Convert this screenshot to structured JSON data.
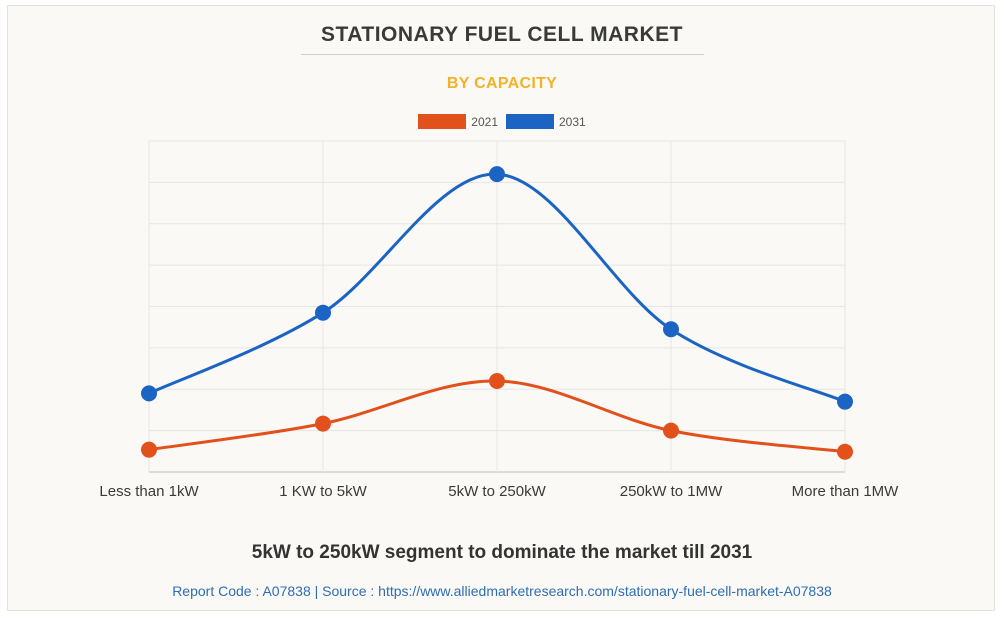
{
  "header": {
    "title": "STATIONARY FUEL CELL MARKET",
    "subtitle": "BY CAPACITY"
  },
  "colors": {
    "series_2021": "#e2501c",
    "series_2031": "#1c64c4",
    "subtitle": "#f2b229"
  },
  "chart_data": {
    "type": "line",
    "smooth": true,
    "categories": [
      "Less than 1kW",
      "1 KW to 5kW",
      "5kW to 250kW",
      "250kW to 1MW",
      "More than 1MW"
    ],
    "series": [
      {
        "name": "2021",
        "values": [
          5.4,
          11.7,
          22.0,
          10.0,
          4.9
        ]
      },
      {
        "name": "2031",
        "values": [
          19.0,
          38.5,
          72.0,
          34.5,
          17.0
        ]
      }
    ],
    "ylim": [
      0,
      80
    ],
    "grid": true,
    "legend": "top-center",
    "xlabel": "",
    "ylabel": ""
  },
  "caption": "5kW to 250kW segment to dominate the market till 2031",
  "footer": "Report Code : A07838  |  Source : https://www.alliedmarketresearch.com/stationary-fuel-cell-market-A07838"
}
